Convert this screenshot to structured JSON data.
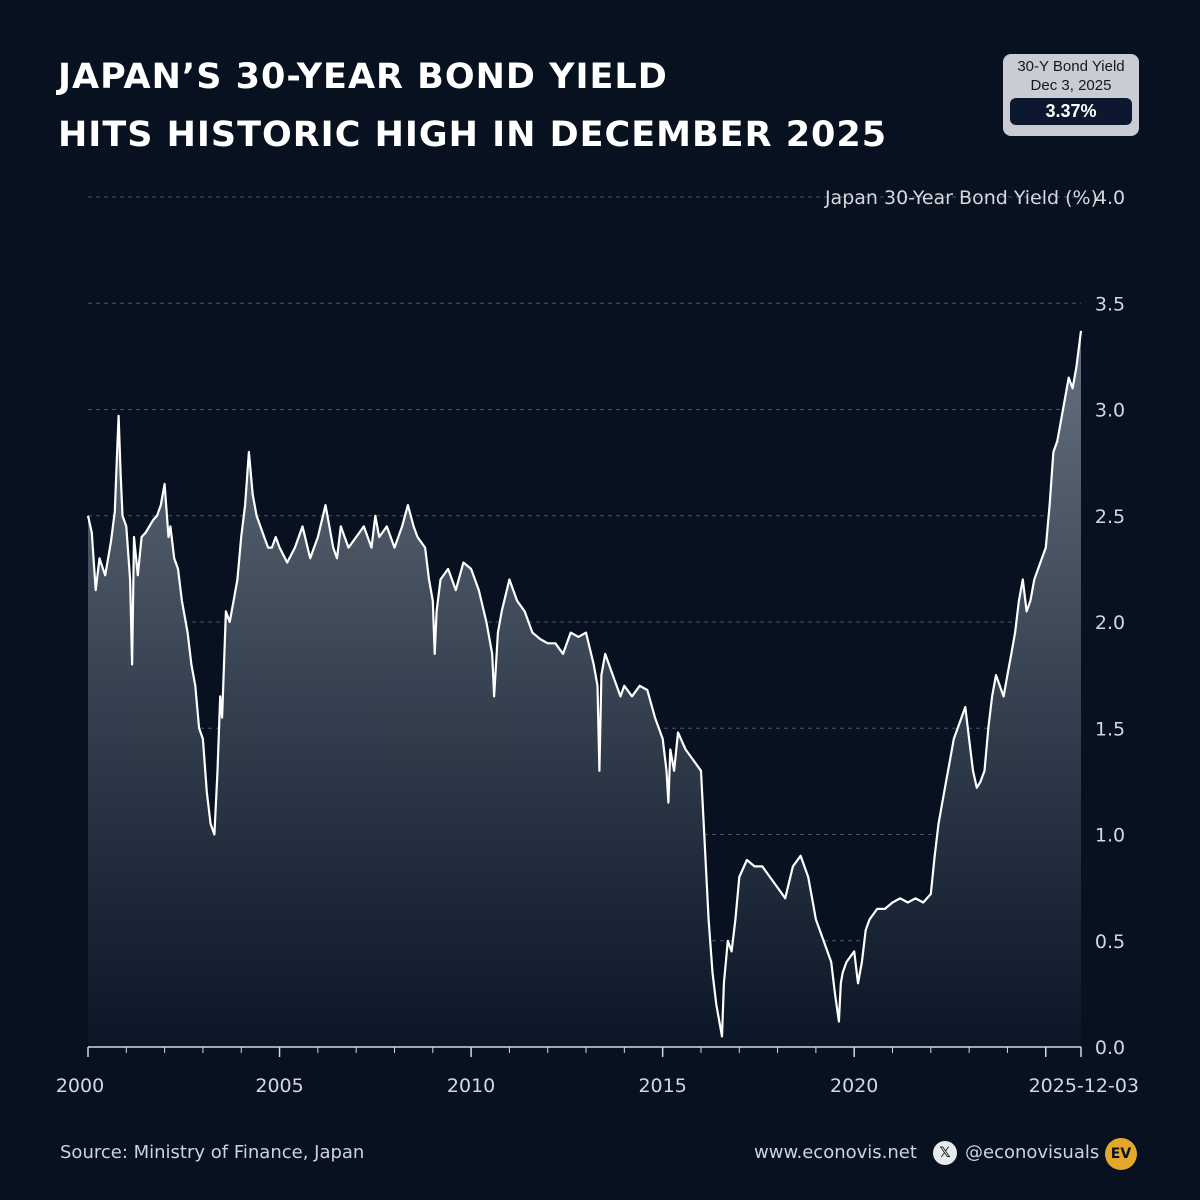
{
  "title": {
    "line1": "JAPAN’S 30-YEAR BOND YIELD",
    "line2": "HITS HISTORIC HIGH IN DECEMBER 2025"
  },
  "badge": {
    "line1": "30-Y Bond Yield",
    "line2": "Dec 3, 2025",
    "value": "3.37%"
  },
  "footer": {
    "source": "Source: Ministry of Finance, Japan",
    "website": "www.econovis.net",
    "handle": "@econovisuals",
    "logo_text": "EV"
  },
  "colors": {
    "background": "#07111f",
    "line": "#ffffff",
    "grid": "#4a5566",
    "area_top": "#6b7685",
    "area_bottom": "#0b1626"
  },
  "chart_data": {
    "type": "area",
    "title": "",
    "ylabel": "Japan 30-Year Bond Yield (%)",
    "xlabel": "",
    "xlim": [
      2000.0,
      2025.92
    ],
    "ylim": [
      0,
      4.0
    ],
    "x_ticks": [
      {
        "x": 2000,
        "label": "2000"
      },
      {
        "x": 2005,
        "label": "2005"
      },
      {
        "x": 2010,
        "label": "2010"
      },
      {
        "x": 2015,
        "label": "2015"
      },
      {
        "x": 2020,
        "label": "2020"
      },
      {
        "x": 2025.92,
        "label": "2025-12-03"
      }
    ],
    "y_ticks": [
      {
        "y": 0.0,
        "label": "0.0"
      },
      {
        "y": 0.5,
        "label": "0.5"
      },
      {
        "y": 1.0,
        "label": "1.0"
      },
      {
        "y": 1.5,
        "label": "1.5"
      },
      {
        "y": 2.0,
        "label": "2.0"
      },
      {
        "y": 2.5,
        "label": "2.5"
      },
      {
        "y": 3.0,
        "label": "3.0"
      },
      {
        "y": 3.5,
        "label": "3.5"
      },
      {
        "y": 4.0,
        "label": "4.0"
      }
    ],
    "grid": "horizontal dashed",
    "series": [
      {
        "x": [
          2000.0,
          2000.1,
          2000.2,
          2000.3,
          2000.45,
          2000.6,
          2000.7,
          2000.75,
          2000.8,
          2000.85,
          2000.9,
          2001.0,
          2001.1,
          2001.15,
          2001.2,
          2001.3,
          2001.4,
          2001.5,
          2001.6,
          2001.7,
          2001.8,
          2001.9,
          2002.0,
          2002.1,
          2002.15,
          2002.25,
          2002.35,
          2002.45,
          2002.6,
          2002.7,
          2002.8,
          2002.9,
          2003.0,
          2003.1,
          2003.2,
          2003.3,
          2003.38,
          2003.45,
          2003.5,
          2003.55,
          2003.6,
          2003.7,
          2003.8,
          2003.9,
          2004.0,
          2004.1,
          2004.2,
          2004.3,
          2004.4,
          2004.5,
          2004.6,
          2004.7,
          2004.8,
          2004.9,
          2005.0,
          2005.2,
          2005.4,
          2005.6,
          2005.8,
          2006.0,
          2006.2,
          2006.3,
          2006.4,
          2006.5,
          2006.6,
          2006.8,
          2007.0,
          2007.2,
          2007.4,
          2007.5,
          2007.6,
          2007.8,
          2008.0,
          2008.2,
          2008.35,
          2008.5,
          2008.6,
          2008.8,
          2008.9,
          2009.0,
          2009.05,
          2009.1,
          2009.2,
          2009.4,
          2009.6,
          2009.8,
          2010.0,
          2010.2,
          2010.4,
          2010.55,
          2010.6,
          2010.7,
          2010.8,
          2011.0,
          2011.2,
          2011.4,
          2011.6,
          2011.8,
          2012.0,
          2012.2,
          2012.4,
          2012.6,
          2012.8,
          2013.0,
          2013.2,
          2013.3,
          2013.35,
          2013.4,
          2013.5,
          2013.7,
          2013.9,
          2014.0,
          2014.2,
          2014.4,
          2014.6,
          2014.8,
          2015.0,
          2015.1,
          2015.15,
          2015.2,
          2015.3,
          2015.4,
          2015.6,
          2015.8,
          2016.0,
          2016.1,
          2016.2,
          2016.3,
          2016.4,
          2016.5,
          2016.55,
          2016.6,
          2016.7,
          2016.8,
          2016.9,
          2017.0,
          2017.2,
          2017.4,
          2017.6,
          2017.8,
          2018.0,
          2018.2,
          2018.4,
          2018.6,
          2018.8,
          2018.9,
          2019.0,
          2019.2,
          2019.4,
          2019.5,
          2019.6,
          2019.65,
          2019.7,
          2019.8,
          2020.0,
          2020.1,
          2020.2,
          2020.3,
          2020.4,
          2020.6,
          2020.8,
          2021.0,
          2021.2,
          2021.4,
          2021.6,
          2021.8,
          2022.0,
          2022.1,
          2022.2,
          2022.3,
          2022.4,
          2022.5,
          2022.6,
          2022.8,
          2022.9,
          2023.0,
          2023.1,
          2023.2,
          2023.3,
          2023.4,
          2023.5,
          2023.6,
          2023.7,
          2023.8,
          2023.9,
          2024.0,
          2024.1,
          2024.2,
          2024.3,
          2024.4,
          2024.5,
          2024.6,
          2024.7,
          2024.8,
          2024.9,
          2025.0,
          2025.1,
          2025.2,
          2025.3,
          2025.4,
          2025.5,
          2025.6,
          2025.7,
          2025.8,
          2025.92
        ],
        "values": [
          2.5,
          2.42,
          2.15,
          2.3,
          2.22,
          2.38,
          2.52,
          2.75,
          2.97,
          2.7,
          2.5,
          2.45,
          2.2,
          1.8,
          2.4,
          2.22,
          2.4,
          2.42,
          2.45,
          2.48,
          2.5,
          2.55,
          2.65,
          2.4,
          2.45,
          2.3,
          2.25,
          2.1,
          1.95,
          1.8,
          1.7,
          1.5,
          1.45,
          1.2,
          1.05,
          1.0,
          1.3,
          1.65,
          1.55,
          1.8,
          2.05,
          2.0,
          2.1,
          2.2,
          2.4,
          2.55,
          2.8,
          2.6,
          2.5,
          2.45,
          2.4,
          2.35,
          2.35,
          2.4,
          2.35,
          2.28,
          2.35,
          2.45,
          2.3,
          2.4,
          2.55,
          2.45,
          2.35,
          2.3,
          2.45,
          2.35,
          2.4,
          2.45,
          2.35,
          2.5,
          2.4,
          2.45,
          2.35,
          2.45,
          2.55,
          2.45,
          2.4,
          2.35,
          2.2,
          2.1,
          1.85,
          2.05,
          2.2,
          2.25,
          2.15,
          2.28,
          2.25,
          2.15,
          2.0,
          1.85,
          1.65,
          1.95,
          2.05,
          2.2,
          2.1,
          2.05,
          1.95,
          1.92,
          1.9,
          1.9,
          1.85,
          1.95,
          1.93,
          1.95,
          1.8,
          1.7,
          1.3,
          1.75,
          1.85,
          1.75,
          1.65,
          1.7,
          1.65,
          1.7,
          1.68,
          1.55,
          1.45,
          1.3,
          1.15,
          1.4,
          1.3,
          1.48,
          1.4,
          1.35,
          1.3,
          0.95,
          0.6,
          0.35,
          0.2,
          0.1,
          0.05,
          0.3,
          0.5,
          0.45,
          0.6,
          0.8,
          0.88,
          0.85,
          0.85,
          0.8,
          0.75,
          0.7,
          0.85,
          0.9,
          0.8,
          0.7,
          0.6,
          0.5,
          0.4,
          0.25,
          0.12,
          0.3,
          0.35,
          0.4,
          0.45,
          0.3,
          0.4,
          0.55,
          0.6,
          0.65,
          0.65,
          0.68,
          0.7,
          0.68,
          0.7,
          0.68,
          0.72,
          0.9,
          1.05,
          1.15,
          1.25,
          1.35,
          1.45,
          1.55,
          1.6,
          1.45,
          1.3,
          1.22,
          1.25,
          1.3,
          1.5,
          1.65,
          1.75,
          1.7,
          1.65,
          1.75,
          1.85,
          1.95,
          2.1,
          2.2,
          2.05,
          2.1,
          2.2,
          2.25,
          2.3,
          2.35,
          2.55,
          2.8,
          2.85,
          2.95,
          3.05,
          3.15,
          3.1,
          3.2,
          3.37
        ]
      }
    ]
  }
}
